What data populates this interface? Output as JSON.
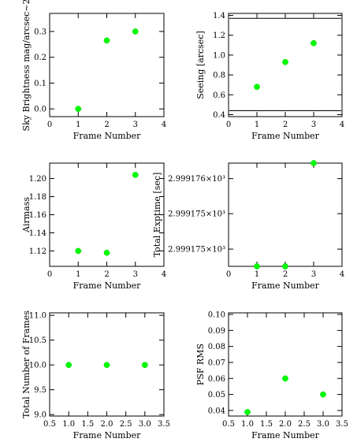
{
  "colors": {
    "marker": "#00ff00",
    "axis": "#000000",
    "background": "#ffffff"
  },
  "chart_data": [
    {
      "type": "scatter",
      "xlabel": "Frame Number",
      "ylabel": "Sky Brightness mag/arcsec~2",
      "xlim": [
        0,
        4
      ],
      "ylim": [
        -0.03,
        0.37
      ],
      "xticks": [
        0,
        1,
        2,
        3,
        4
      ],
      "xtick_labels": [
        "0",
        "1",
        "2",
        "3",
        "4"
      ],
      "yticks": [
        0.0,
        0.1,
        0.2,
        0.3
      ],
      "ytick_labels": [
        "0.0",
        "0.1",
        "0.2",
        "0.3"
      ],
      "x": [
        1,
        2,
        3
      ],
      "y": [
        0.0,
        0.265,
        0.3
      ],
      "hlines": []
    },
    {
      "type": "scatter",
      "xlabel": "Frame Number",
      "ylabel": "Seeing [arcsec]",
      "xlim": [
        0,
        4
      ],
      "ylim": [
        0.38,
        1.42
      ],
      "xticks": [
        0,
        1,
        2,
        3,
        4
      ],
      "xtick_labels": [
        "0",
        "1",
        "2",
        "3",
        "4"
      ],
      "yticks": [
        0.4,
        0.6,
        0.8,
        1.0,
        1.2,
        1.4
      ],
      "ytick_labels": [
        "0.4",
        "0.6",
        "0.8",
        "1.0",
        "1.2",
        "1.4"
      ],
      "x": [
        1,
        2,
        3
      ],
      "y": [
        0.68,
        0.93,
        1.12
      ],
      "hlines": [
        1.37,
        0.44
      ]
    },
    {
      "type": "scatter",
      "xlabel": "Frame Number",
      "ylabel": "Airmass",
      "xlim": [
        0,
        4
      ],
      "ylim": [
        1.103,
        1.217
      ],
      "xticks": [
        0,
        1,
        2,
        3,
        4
      ],
      "xtick_labels": [
        "0",
        "1",
        "2",
        "3",
        "4"
      ],
      "yticks": [
        1.12,
        1.14,
        1.16,
        1.18,
        1.2
      ],
      "ytick_labels": [
        "1.12",
        "1.14",
        "1.16",
        "1.18",
        "1.20"
      ],
      "x": [
        1,
        2,
        3
      ],
      "y": [
        1.12,
        1.118,
        1.204
      ],
      "hlines": []
    },
    {
      "type": "scatter",
      "xlabel": "Frame Number",
      "ylabel": "Total Exptime [sec]",
      "xlim": [
        0,
        4
      ],
      "ylim": [
        0,
        1
      ],
      "xticks": [
        0,
        1,
        2,
        3,
        4
      ],
      "xtick_labels": [
        "0",
        "1",
        "2",
        "3",
        "4"
      ],
      "yticks": [
        0.167,
        0.51,
        0.85
      ],
      "ytick_labels": [
        "2.999175×10³",
        "2.999175×10³",
        "2.999176×10³"
      ],
      "x": [
        1,
        2,
        3
      ],
      "y": [
        0.0,
        0.0,
        1.0
      ],
      "hlines": []
    },
    {
      "type": "scatter",
      "xlabel": "Frame Number",
      "ylabel": "Total Number of Frames",
      "xlim": [
        0.5,
        3.5
      ],
      "ylim": [
        8.97,
        11.05
      ],
      "xticks": [
        0.5,
        1.0,
        1.5,
        2.0,
        2.5,
        3.0,
        3.5
      ],
      "xtick_labels": [
        "0.5",
        "1.0",
        "1.5",
        "2.0",
        "2.5",
        "3.0",
        "3.5"
      ],
      "yticks": [
        9.0,
        9.5,
        10.0,
        10.5,
        11.0
      ],
      "ytick_labels": [
        "9.0",
        "9.5",
        "10.0",
        "10.5",
        "11.0"
      ],
      "x": [
        1,
        2,
        3
      ],
      "y": [
        10,
        10,
        10
      ],
      "hlines": []
    },
    {
      "type": "scatter",
      "xlabel": "Frame Number",
      "ylabel": "PSF RMS",
      "xlim": [
        0.5,
        3.5
      ],
      "ylim": [
        0.0365,
        0.101
      ],
      "xticks": [
        0.5,
        1.0,
        1.5,
        2.0,
        2.5,
        3.0,
        3.5
      ],
      "xtick_labels": [
        "0.5",
        "1.0",
        "1.5",
        "2.0",
        "2.5",
        "3.0",
        "3.5"
      ],
      "yticks": [
        0.04,
        0.05,
        0.06,
        0.07,
        0.08,
        0.09,
        0.1
      ],
      "ytick_labels": [
        "0.04",
        "0.05",
        "0.06",
        "0.07",
        "0.08",
        "0.09",
        "0.10"
      ],
      "x": [
        1,
        2,
        3
      ],
      "y": [
        0.039,
        0.06,
        0.05
      ],
      "hlines": []
    }
  ]
}
